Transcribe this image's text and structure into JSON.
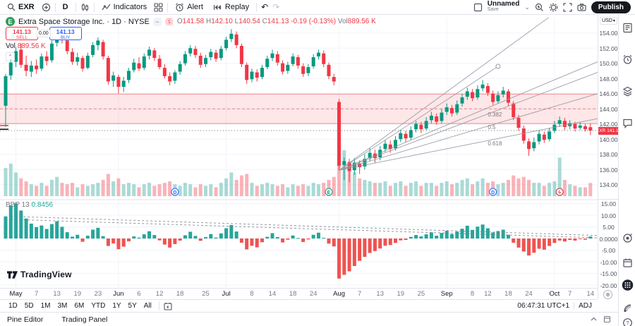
{
  "toolbar": {
    "symbol": "EXR",
    "interval": "D",
    "indicators_label": "Indicators",
    "alert_label": "Alert",
    "replay_label": "Replay",
    "layout_name": "Unnamed",
    "save_label": "Save",
    "publish_label": "Publish"
  },
  "legend": {
    "logo_letter": "E",
    "title": "Extra Space Storage Inc. · 1D · NYSE",
    "o_l": "O",
    "o": "141.58",
    "h_l": "H",
    "h": "142.10",
    "l_l": "L",
    "l": "140.54",
    "c_l": "C",
    "c": "141.13",
    "chg": "-0.19 (-0.13%)",
    "vol_l": "Vol",
    "vol": "889.56 K"
  },
  "trade_buttons": {
    "sell_price": "141.13",
    "sell_label": "SELL",
    "spread": "0.00",
    "buy_price": "141.13",
    "buy_label": "BUY"
  },
  "vol_row": {
    "label": "Vol",
    "value": "889.56 K"
  },
  "bbp_row": {
    "name": "BBP",
    "length": "13",
    "value": "0.8456"
  },
  "tv_logo_text": "TradingView",
  "price_axis": {
    "currency": "USD",
    "labels": [
      "154.00",
      "152.00",
      "150.00",
      "148.00",
      "146.00",
      "144.00",
      "142.00",
      "140.00",
      "138.00",
      "136.00",
      "134.00"
    ],
    "label_values": [
      154,
      152,
      150,
      148,
      146,
      144,
      142,
      140,
      138,
      136,
      134
    ],
    "badge": {
      "symbol": "EXR",
      "price": "141.13",
      "value": 141.13
    },
    "bbp_labels": [
      "15.00",
      "10.00",
      "5.00",
      "0.0000",
      "-5.00",
      "-10.00",
      "-15.00",
      "-20.00"
    ],
    "bbp_label_values": [
      15,
      10,
      5,
      0,
      -5,
      -10,
      -15,
      -20
    ]
  },
  "time_axis": {
    "ticks": [
      [
        2,
        "May",
        1
      ],
      [
        6,
        "7",
        0
      ],
      [
        10,
        "13",
        0
      ],
      [
        14,
        "19",
        0
      ],
      [
        18,
        "23",
        0
      ],
      [
        22,
        "Jun",
        1
      ],
      [
        26,
        "6",
        0
      ],
      [
        30,
        "12",
        0
      ],
      [
        34,
        "18",
        0
      ],
      [
        39,
        "25",
        0
      ],
      [
        43,
        "Jul",
        1
      ],
      [
        48,
        "8",
        0
      ],
      [
        52,
        "14",
        0
      ],
      [
        56,
        "18",
        0
      ],
      [
        60,
        "24",
        0
      ],
      [
        65,
        "Aug",
        1
      ],
      [
        69,
        "7",
        0
      ],
      [
        73,
        "13",
        0
      ],
      [
        77,
        "19",
        0
      ],
      [
        81,
        "25",
        0
      ],
      [
        86,
        "Sep",
        1
      ],
      [
        91,
        "8",
        0
      ],
      [
        94,
        "12",
        0
      ],
      [
        98,
        "18",
        0
      ],
      [
        102,
        "24",
        0
      ],
      [
        107,
        "Oct",
        1
      ],
      [
        110,
        "7",
        0
      ],
      [
        114,
        "14",
        0
      ]
    ]
  },
  "range_toolbar": {
    "items": [
      "1D",
      "5D",
      "1M",
      "3M",
      "6M",
      "YTD",
      "1Y",
      "5Y",
      "All"
    ]
  },
  "clock": {
    "time": "06:47:31",
    "tz": "UTC+1",
    "adj": "ADJ"
  },
  "status_bar": {
    "items": [
      "Pine Editor",
      "Trading Panel"
    ]
  },
  "sidebar_icons": [
    "watchlist",
    "alerts-clock",
    "object-tree",
    "chat",
    "target",
    "calendar",
    "apps-grid",
    "news-feed",
    "help"
  ],
  "chart_data": {
    "type": "candlestick",
    "title": "Extra Space Storage Inc.",
    "ticker": "EXR",
    "exchange": "NYSE",
    "interval": "1D",
    "currency": "USD",
    "y_axis": {
      "min": 134,
      "max": 154,
      "step": 2
    },
    "indicator_axis": {
      "min": -20,
      "max": 15,
      "step": 5
    },
    "ohlc": [
      [
        144.4,
        148.6,
        141.6,
        148.3
      ],
      [
        148.4,
        150.5,
        147.8,
        150.1
      ],
      [
        150.2,
        152.1,
        149.5,
        151.6
      ],
      [
        151.8,
        152.6,
        149.4,
        149.8
      ],
      [
        149.8,
        151.0,
        148.3,
        149.0
      ],
      [
        148.9,
        150.3,
        148.2,
        149.7
      ],
      [
        149.7,
        150.5,
        148.6,
        149.2
      ],
      [
        149.3,
        151.3,
        149.0,
        150.9
      ],
      [
        150.9,
        151.6,
        149.7,
        150.3
      ],
      [
        150.4,
        153.0,
        150.1,
        152.6
      ],
      [
        152.7,
        154.3,
        152.2,
        153.8
      ],
      [
        153.8,
        154.1,
        152.6,
        153.1
      ],
      [
        153.0,
        153.5,
        151.2,
        151.6
      ],
      [
        151.5,
        152.0,
        149.8,
        150.2
      ],
      [
        150.2,
        151.4,
        149.7,
        150.8
      ],
      [
        150.7,
        151.0,
        148.9,
        149.3
      ],
      [
        149.4,
        151.4,
        149.2,
        151.0
      ],
      [
        151.1,
        152.8,
        150.8,
        152.4
      ],
      [
        152.4,
        153.4,
        151.7,
        153.0
      ],
      [
        152.8,
        153.1,
        150.5,
        150.9
      ],
      [
        150.7,
        151.0,
        147.2,
        147.6
      ],
      [
        147.7,
        148.9,
        146.9,
        148.4
      ],
      [
        148.2,
        148.5,
        146.0,
        146.9
      ],
      [
        146.9,
        148.2,
        146.2,
        147.7
      ],
      [
        147.8,
        149.4,
        147.4,
        149.0
      ],
      [
        149.1,
        150.6,
        148.8,
        150.1
      ],
      [
        150.0,
        150.8,
        149.0,
        149.3
      ],
      [
        149.4,
        151.3,
        149.1,
        150.9
      ],
      [
        151.0,
        152.2,
        150.5,
        151.8
      ],
      [
        151.7,
        152.0,
        150.3,
        150.7
      ],
      [
        150.6,
        151.1,
        149.2,
        149.5
      ],
      [
        149.4,
        149.9,
        148.0,
        148.3
      ],
      [
        148.3,
        148.8,
        147.1,
        147.6
      ],
      [
        147.7,
        149.1,
        147.3,
        148.8
      ],
      [
        148.9,
        150.3,
        148.5,
        149.9
      ],
      [
        150.0,
        151.6,
        149.7,
        151.2
      ],
      [
        151.3,
        152.4,
        150.9,
        152.0
      ],
      [
        151.9,
        152.3,
        150.7,
        151.1
      ],
      [
        151.0,
        151.4,
        149.4,
        149.8
      ],
      [
        149.9,
        151.1,
        149.5,
        150.7
      ],
      [
        150.8,
        151.9,
        150.4,
        151.5
      ],
      [
        151.4,
        151.8,
        150.2,
        150.6
      ],
      [
        150.7,
        152.3,
        150.4,
        151.9
      ],
      [
        152.0,
        153.5,
        151.7,
        153.1
      ],
      [
        153.2,
        154.5,
        152.8,
        153.9
      ],
      [
        153.8,
        154.2,
        152.0,
        152.4
      ],
      [
        152.3,
        152.6,
        149.5,
        149.9
      ],
      [
        149.8,
        150.1,
        147.3,
        147.8
      ],
      [
        147.9,
        149.3,
        147.5,
        148.9
      ],
      [
        148.8,
        149.2,
        147.6,
        148.1
      ],
      [
        148.2,
        149.8,
        147.9,
        149.4
      ],
      [
        149.5,
        151.0,
        149.2,
        150.6
      ],
      [
        150.7,
        151.8,
        150.3,
        151.3
      ],
      [
        151.2,
        151.6,
        149.7,
        150.1
      ],
      [
        150.0,
        150.4,
        148.5,
        148.9
      ],
      [
        149.0,
        150.2,
        148.6,
        149.8
      ],
      [
        149.9,
        151.3,
        149.6,
        150.9
      ],
      [
        150.8,
        151.1,
        149.3,
        149.7
      ],
      [
        149.6,
        150.0,
        148.2,
        148.6
      ],
      [
        148.7,
        149.9,
        148.3,
        149.5
      ],
      [
        149.6,
        151.2,
        149.3,
        150.8
      ],
      [
        150.9,
        151.8,
        150.5,
        151.4
      ],
      [
        151.3,
        151.7,
        149.5,
        149.9
      ],
      [
        149.8,
        150.1,
        147.9,
        148.3
      ],
      [
        148.2,
        148.6,
        147.1,
        147.6
      ],
      [
        144.9,
        145.3,
        135.9,
        136.5
      ],
      [
        136.6,
        137.6,
        134.6,
        137.1
      ],
      [
        137.0,
        137.4,
        134.3,
        135.8
      ],
      [
        135.9,
        137.5,
        135.3,
        136.9
      ],
      [
        136.8,
        137.2,
        135.4,
        136.3
      ],
      [
        136.4,
        138.0,
        136.0,
        137.4
      ],
      [
        137.5,
        138.8,
        137.1,
        138.2
      ],
      [
        138.1,
        138.6,
        136.9,
        137.5
      ],
      [
        137.6,
        139.1,
        137.2,
        138.6
      ],
      [
        138.7,
        139.9,
        138.3,
        139.4
      ],
      [
        139.3,
        139.8,
        138.2,
        138.7
      ],
      [
        138.8,
        140.4,
        138.5,
        139.9
      ],
      [
        140.0,
        141.2,
        139.6,
        140.8
      ],
      [
        140.7,
        141.1,
        139.6,
        140.1
      ],
      [
        140.2,
        141.7,
        139.9,
        141.2
      ],
      [
        141.3,
        142.4,
        140.9,
        142.0
      ],
      [
        141.9,
        142.3,
        140.8,
        141.3
      ],
      [
        141.4,
        142.9,
        141.1,
        142.4
      ],
      [
        142.5,
        143.6,
        142.1,
        143.1
      ],
      [
        143.0,
        143.4,
        141.9,
        142.3
      ],
      [
        142.4,
        144.0,
        142.1,
        143.5
      ],
      [
        143.6,
        144.7,
        143.2,
        144.2
      ],
      [
        144.1,
        144.5,
        143.0,
        143.4
      ],
      [
        143.5,
        145.1,
        143.2,
        144.6
      ],
      [
        144.7,
        146.0,
        144.3,
        145.5
      ],
      [
        145.6,
        146.8,
        145.2,
        146.3
      ],
      [
        146.2,
        146.6,
        145.0,
        145.4
      ],
      [
        145.5,
        147.1,
        145.2,
        146.6
      ],
      [
        146.7,
        147.8,
        146.3,
        147.2
      ],
      [
        147.0,
        147.4,
        145.7,
        146.1
      ],
      [
        146.0,
        146.4,
        144.5,
        144.9
      ],
      [
        145.0,
        146.3,
        144.7,
        145.8
      ],
      [
        145.9,
        146.9,
        145.5,
        146.4
      ],
      [
        146.3,
        146.6,
        144.4,
        144.8
      ],
      [
        144.7,
        145.0,
        142.5,
        142.9
      ],
      [
        142.8,
        143.2,
        141.1,
        141.5
      ],
      [
        141.4,
        141.8,
        139.4,
        139.8
      ],
      [
        139.7,
        140.1,
        137.8,
        138.7
      ],
      [
        138.8,
        140.2,
        138.4,
        139.6
      ],
      [
        139.7,
        141.2,
        139.3,
        140.7
      ],
      [
        140.6,
        141.0,
        139.5,
        139.9
      ],
      [
        140.0,
        141.5,
        139.7,
        141.0
      ],
      [
        141.1,
        142.4,
        140.8,
        141.9
      ],
      [
        142.0,
        143.0,
        141.6,
        142.5
      ],
      [
        142.4,
        142.8,
        141.2,
        141.6
      ],
      [
        141.7,
        142.5,
        141.3,
        142.1
      ],
      [
        142.0,
        142.3,
        141.0,
        141.4
      ],
      [
        141.5,
        142.2,
        141.2,
        141.8
      ],
      [
        141.7,
        142.0,
        141.0,
        141.3
      ],
      [
        141.58,
        142.1,
        140.54,
        141.13
      ]
    ],
    "volume_millions": [
      1.9,
      2.2,
      1.6,
      1.2,
      1.0,
      0.8,
      0.7,
      0.9,
      0.7,
      1.1,
      1.3,
      0.9,
      0.8,
      0.9,
      0.6,
      0.8,
      0.7,
      0.8,
      0.9,
      1.1,
      1.5,
      1.0,
      1.2,
      0.8,
      0.9,
      0.8,
      0.6,
      0.8,
      0.9,
      0.7,
      0.8,
      0.9,
      1.0,
      0.8,
      0.7,
      0.9,
      0.8,
      0.6,
      0.8,
      0.7,
      0.8,
      0.6,
      0.9,
      1.2,
      1.6,
      1.1,
      1.4,
      1.5,
      0.9,
      0.7,
      0.8,
      0.9,
      0.8,
      0.7,
      0.8,
      0.6,
      0.8,
      0.7,
      0.8,
      0.7,
      0.9,
      0.8,
      0.9,
      1.1,
      1.3,
      5.2,
      3.1,
      2.2,
      1.6,
      1.2,
      1.1,
      1.0,
      0.9,
      0.9,
      1.0,
      0.7,
      0.9,
      1.0,
      0.7,
      0.9,
      1.0,
      0.7,
      0.9,
      0.9,
      0.7,
      0.9,
      1.0,
      0.8,
      0.9,
      1.1,
      1.2,
      0.8,
      1.0,
      1.2,
      0.9,
      1.0,
      0.8,
      0.9,
      1.1,
      1.4,
      1.2,
      1.3,
      1.1,
      0.9,
      0.9,
      0.7,
      0.9,
      1.0,
      2.6,
      1.1,
      0.8,
      0.7,
      0.6,
      0.6,
      0.89
    ],
    "indicator": {
      "name": "BBP",
      "length": 13,
      "last_value": 0.8456,
      "values": [
        9.5,
        14.2,
        15.1,
        12.0,
        8.6,
        6.4,
        4.9,
        5.6,
        4.1,
        6.2,
        7.4,
        5.0,
        2.7,
        0.8,
        1.6,
        -1.4,
        1.2,
        3.8,
        4.6,
        1.0,
        -3.2,
        -2.1,
        -4.6,
        -3.5,
        -1.2,
        0.9,
        0.4,
        1.8,
        3.1,
        1.5,
        -0.8,
        -2.6,
        -3.9,
        -2.4,
        -0.9,
        1.4,
        2.9,
        1.1,
        -1.0,
        0.6,
        1.9,
        0.4,
        2.2,
        4.4,
        5.8,
        3.0,
        -1.8,
        -4.7,
        -3.1,
        -3.8,
        -1.6,
        0.7,
        2.3,
        0.6,
        -1.7,
        -0.5,
        1.3,
        0.2,
        -1.5,
        -0.4,
        1.6,
        2.5,
        0.3,
        -2.2,
        -3.4,
        -17.2,
        -15.6,
        -14.1,
        -11.8,
        -9.6,
        -7.9,
        -6.2,
        -5.4,
        -4.3,
        -3.1,
        -2.8,
        -1.9,
        -0.8,
        -0.6,
        0.7,
        1.5,
        0.9,
        1.8,
        2.6,
        1.2,
        2.4,
        3.3,
        1.9,
        3.0,
        4.2,
        5.5,
        3.7,
        5.1,
        6.0,
        4.4,
        2.6,
        3.2,
        3.8,
        1.6,
        -1.8,
        -3.9,
        -5.6,
        -7.3,
        -6.1,
        -4.4,
        -4.8,
        -3.2,
        -1.9,
        -0.9,
        -1.3,
        -0.6,
        -0.9,
        -0.2,
        -0.5,
        0.8456
      ]
    },
    "drawings": {
      "zone": {
        "top": 145.95,
        "bottom": 142.05,
        "mid_dashed": 144.0
      },
      "last_price_line": 141.13,
      "left_markers": [
        {
          "price": 141.8,
          "color": "#f23645"
        },
        {
          "price": 141.3,
          "color": "#131722"
        }
      ],
      "rays": [
        {
          "from": [
            65,
            135.9
          ],
          "to": [
            96,
            149.6
          ],
          "handle": true
        },
        {
          "from": [
            65,
            135.9
          ],
          "to": [
            106.6,
            156.4
          ]
        },
        {
          "from": [
            65,
            135.9
          ],
          "to": [
            115.4,
            150.2
          ]
        },
        {
          "from": [
            65,
            135.9
          ],
          "to": [
            115.4,
            148.8
          ],
          "label": "0.382",
          "label_at": [
            94,
            143.0
          ]
        },
        {
          "from": [
            65,
            135.9
          ],
          "to": [
            115.4,
            146.0
          ],
          "label": "0.5",
          "label_at": [
            94,
            141.3
          ]
        },
        {
          "from": [
            65,
            135.9
          ],
          "to": [
            115.4,
            142.7
          ],
          "label": "0.618",
          "label_at": [
            94,
            139.2
          ]
        }
      ],
      "bbp_dashed_lines": [
        {
          "from": [
            1,
            9.5
          ],
          "to": [
            114,
            1.3
          ]
        },
        {
          "from": [
            1,
            8.2
          ],
          "to": [
            114,
            0.3
          ]
        }
      ],
      "event_markers": [
        {
          "i": 33,
          "glyph": "D",
          "color": "#2962ff"
        },
        {
          "i": 63,
          "glyph": "E",
          "color": "#089981"
        },
        {
          "i": 95,
          "glyph": "D",
          "color": "#2962ff"
        },
        {
          "i": 108,
          "glyph": "ϟ",
          "color": "#cc2f3c"
        }
      ]
    },
    "colors": {
      "up": "#089981",
      "down": "#f23645",
      "vol_up": "rgba(42,166,152,0.40)",
      "vol_down": "rgba(242,54,69,0.38)",
      "bbp_up": "#26a69a",
      "bbp_down": "#ef5350",
      "zone_fill": "rgba(242,54,69,0.12)",
      "zone_border": "rgba(242,54,69,0.55)",
      "grid": "#f0f3fa",
      "ray": "#9598a1",
      "accent_blue": "#2962ff",
      "badge": "#f23645"
    }
  }
}
